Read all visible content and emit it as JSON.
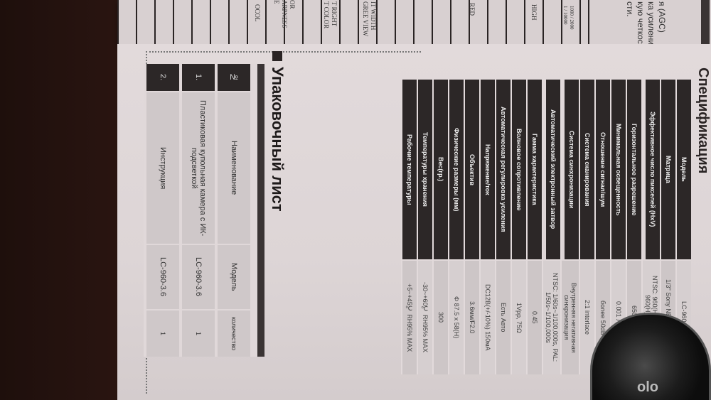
{
  "back_page": {
    "agc_lines": [
      "я (AGC)",
      "ка усиления.",
      "кую четкость",
      "сти."
    ],
    "grid_texts": [
      "1000 / 2000",
      "1 / 10000",
      "HIGH",
      "RED",
      "IT WIDTH",
      "GREE VIEW",
      "T RIGHT",
      "T COLOR",
      "OR",
      "ARPNESS",
      "E",
      "OCOL"
    ]
  },
  "specification": {
    "title": "Спецификация",
    "rows": [
      {
        "label": "Модель",
        "value": "LC-960-3.6"
      },
      {
        "label": "Матрица",
        "value": "1/3\" Sony NEXTCHIP CCD"
      },
      {
        "label": "Эффективное число пикселей (HxV)",
        "value": "NTSC: 960(H)×496(V), PAL: 960(H)×582(V)"
      },
      {
        "label": "Горизонтальное разрешение",
        "value": "650 ТВЛ"
      },
      {
        "label": "Минимальная освещенность",
        "value": "0.001 Люкс"
      },
      {
        "label": "Отношение сигнал/шум",
        "value": "более 50dB"
      },
      {
        "label": "Система сканирования",
        "value": "2:1 interlace"
      },
      {
        "label": "Система синхронизации",
        "value": "Внутренняя негативная синхронизация"
      },
      {
        "label": "Автоматический электронный затвор",
        "value": "NTSC: 1/60s~1/100,000s, PAL: 1/50s~1/100,000s"
      },
      {
        "label": "Гамма характеристика",
        "value": "0.45"
      },
      {
        "label": "Волновое сопротивление",
        "value": "1Vpp, 75Ω"
      },
      {
        "label": "Автоматическая регулировка усиления",
        "value": "Есть Авто"
      },
      {
        "label": "Напряжение/ток",
        "value": "DC12В(+/-10%) 150мА"
      },
      {
        "label": "Объектив",
        "value": "3.6мм/F2.0"
      },
      {
        "label": "Физические размеры (мм)",
        "value": "Φ 87.5 x 58(H)"
      },
      {
        "label": "Вес(гр.)",
        "value": "300"
      },
      {
        "label": "Температуры хранения",
        "value": "-30~+60℃  RH95% MAX"
      },
      {
        "label": "Рабочие температуры",
        "value": "+5~+45℃  RH95% MAX"
      }
    ]
  },
  "packing_list": {
    "title": "Упаковочный лист",
    "headers": {
      "num": "№",
      "name": "Наименование",
      "model": "Модель",
      "qty": "количество"
    },
    "rows": [
      {
        "num": "1.",
        "name": "Пластиковая купольная камера с ИК-подсветкой",
        "model": "LC-960-3.6",
        "qty": "1"
      },
      {
        "num": "2.",
        "name": "Инструкция",
        "model": "LC-960-3.6",
        "qty": "1"
      }
    ]
  },
  "camera": {
    "logo": "olo"
  }
}
